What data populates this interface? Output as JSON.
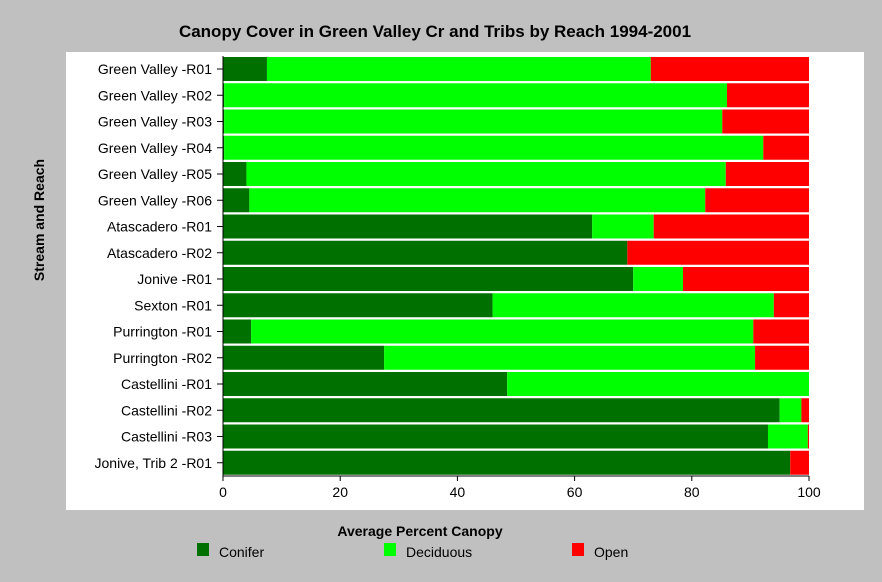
{
  "chart_data": {
    "type": "bar",
    "orientation": "horizontal",
    "stacked": true,
    "title": "Canopy Cover in Green Valley Cr and Tribs by Reach 1994-2001",
    "xlabel": "Average Percent Canopy",
    "ylabel": "Stream and Reach",
    "xlim": [
      0,
      100
    ],
    "xticks": [
      "0",
      "20",
      "40",
      "60",
      "80",
      "100"
    ],
    "grid": false,
    "legend_position": "bottom",
    "categories": [
      "Green Valley -R01",
      "Green Valley -R02",
      "Green Valley -R03",
      "Green Valley -R04",
      "Green Valley -R05",
      "Green Valley -R06",
      "Atascadero -R01",
      "Atascadero -R02",
      "Jonive -R01",
      "Sexton -R01",
      "Purrington -R01",
      "Purrington -R02",
      "Castellini -R01",
      "Castellini -R02",
      "Castellini -R03",
      "Jonive, Trib 2 -R01"
    ],
    "series": [
      {
        "name": "Conifer",
        "color": "#007000",
        "values": [
          7.5,
          0.2,
          0.2,
          0.2,
          4,
          4.5,
          63,
          69,
          70,
          46,
          4.8,
          27.5,
          48.5,
          95,
          93,
          96.8
        ]
      },
      {
        "name": "Deciduous",
        "color": "#00ff00",
        "values": [
          65.5,
          85.8,
          85,
          92,
          81.8,
          77.8,
          10.5,
          0,
          8.5,
          48,
          85.7,
          63.3,
          51.5,
          3.7,
          6.8,
          0
        ]
      },
      {
        "name": "Open",
        "color": "#ff0000",
        "values": [
          27,
          14,
          14.8,
          7.8,
          14.2,
          17.7,
          26.5,
          31,
          21.5,
          6,
          9.5,
          9.2,
          0,
          1.3,
          0.2,
          3.2
        ]
      }
    ]
  }
}
